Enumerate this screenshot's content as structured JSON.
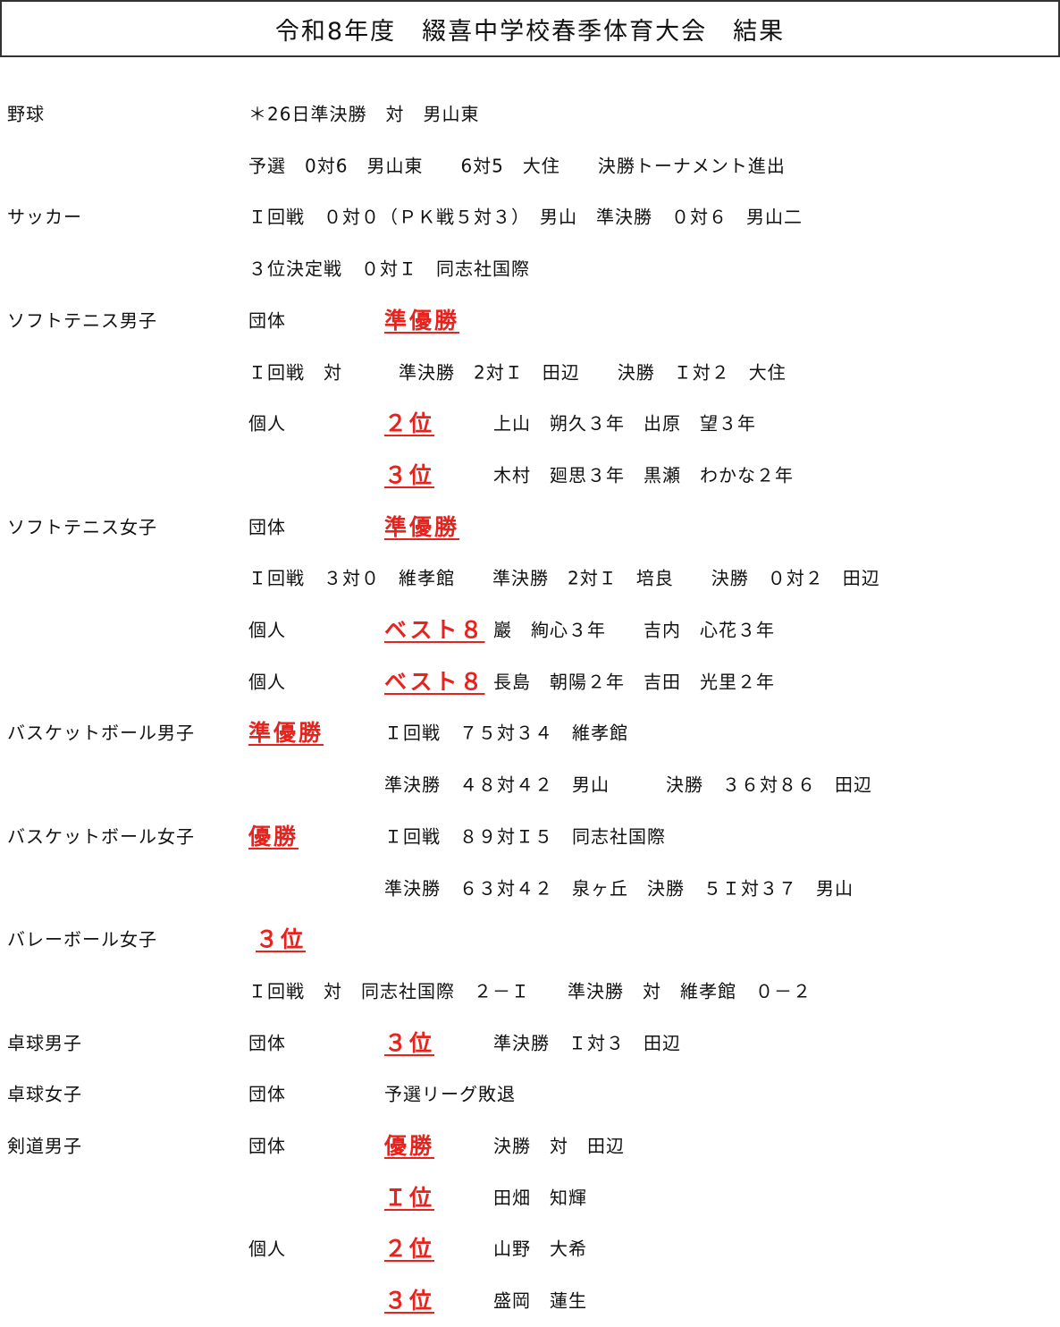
{
  "title": "令和8年度　綴喜中学校春季体育大会　結果",
  "rows": [
    [
      "野球",
      "＊26日準決勝　対　男山東"
    ],
    [
      "予選　0対6　男山東　　6対5　大住　　決勝トーナメント進出"
    ],
    [
      "サッカー",
      "Ｉ回戦　０対０（ＰＫ戦５対３）　男山　準決勝　０対６　男山二"
    ],
    [
      "３位決定戦　０対Ｉ　同志社国際"
    ],
    [
      "ソフトテニス男子",
      "団体",
      "準優勝"
    ],
    [
      "Ｉ回戦　対　　　準決勝　2対Ｉ　田辺　　決勝　Ｉ対２　大住"
    ],
    [
      "個人",
      "２位",
      "上山　朔久３年　出原　望３年"
    ],
    [
      "３位",
      "木村　廻思３年　黒瀬　わかな２年"
    ],
    [
      "ソフトテニス女子",
      "団体",
      "準優勝"
    ],
    [
      "Ｉ回戦　３対０　維孝館　　準決勝　2対Ｉ　培良　　決勝　０対２　田辺"
    ],
    [
      "個人",
      "ベスト８",
      "巖　絢心３年　　吉内　心花３年"
    ],
    [
      "個人",
      "ベスト８",
      "長島　朝陽２年　吉田　光里２年"
    ],
    [
      "バスケットボール男子",
      "準優勝",
      "Ｉ回戦　７５対３４　維孝館"
    ],
    [
      "準決勝　４８対４２　男山　　　決勝　３６対８６　田辺"
    ],
    [
      "バスケットボール女子",
      "優勝",
      "Ｉ回戦　８９対Ｉ５　同志社国際"
    ],
    [
      "準決勝　６３対４２　泉ヶ丘　決勝　５Ｉ対３７　男山"
    ],
    [
      "バレーボール女子",
      "３位"
    ],
    [
      "Ｉ回戦　対　同志社国際　２－Ｉ　　準決勝　対　維孝館　０－２"
    ],
    [
      "卓球男子",
      "団体",
      "３位",
      "準決勝　Ｉ対３　田辺"
    ],
    [
      "卓球女子",
      "団体",
      "予選リーグ敗退"
    ],
    [
      "剣道男子",
      "団体",
      "優勝",
      "決勝　対　田辺"
    ],
    [
      "Ｉ位",
      "田畑　知輝"
    ],
    [
      "個人",
      "２位",
      "山野　大希"
    ],
    [
      "３位",
      "盛岡　蓮生"
    ]
  ]
}
